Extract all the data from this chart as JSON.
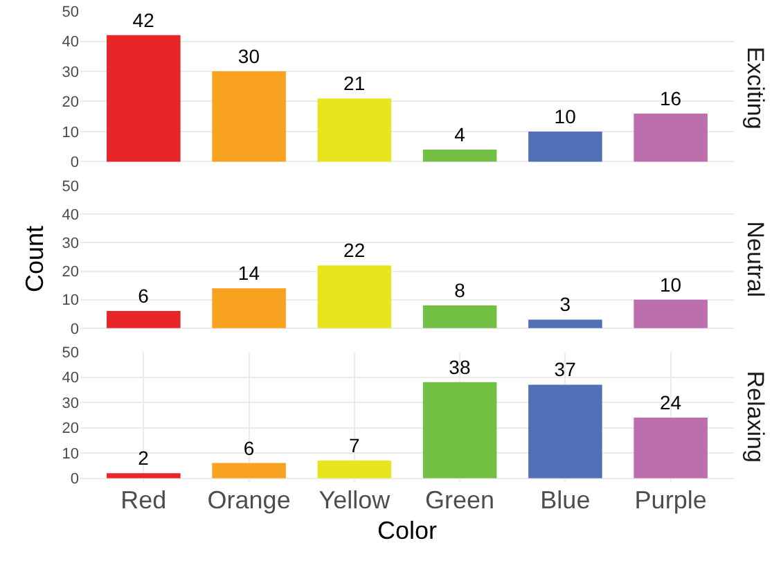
{
  "chart_data": [
    {
      "type": "bar",
      "title": "Exciting",
      "categories": [
        null,
        null,
        null,
        null,
        null,
        null
      ],
      "values": [
        42,
        30,
        21,
        4,
        10,
        16
      ],
      "colors": [
        "#e8262a",
        "#f9a21f",
        "#e8e51e",
        "#72bf44",
        "#5270b7",
        "#bc6fac"
      ],
      "ylim": [
        0,
        50
      ],
      "yticks": [
        0,
        10,
        20,
        30,
        40,
        50
      ],
      "grid": true,
      "data_labels": true,
      "tick_labels": "y"
    },
    {
      "type": "bar",
      "title": "Neutral",
      "ylabel": "Count",
      "categories": [
        null,
        null,
        null,
        null,
        null,
        null
      ],
      "values": [
        6,
        14,
        22,
        8,
        3,
        10
      ],
      "colors": [
        "#e8262a",
        "#f9a21f",
        "#e8e51e",
        "#72bf44",
        "#5270b7",
        "#bc6fac"
      ],
      "ylim": [
        0,
        50
      ],
      "yticks": [
        0,
        10,
        20,
        30,
        40,
        50
      ],
      "grid": true,
      "data_labels": true,
      "tick_labels": "y"
    },
    {
      "type": "bar",
      "title": "Relaxing",
      "xlabel": "Color",
      "categories": [
        "Red",
        "Orange",
        "Yellow",
        "Green",
        "Blue",
        "Purple"
      ],
      "values": [
        2,
        6,
        7,
        38,
        37,
        24
      ],
      "colors": [
        "#e8262a",
        "#f9a21f",
        "#e8e51e",
        "#72bf44",
        "#5270b7",
        "#bc6fac"
      ],
      "ylim": [
        0,
        50
      ],
      "yticks": [
        0,
        10,
        20,
        30,
        40,
        50
      ],
      "grid": true,
      "data_labels": true
    }
  ]
}
